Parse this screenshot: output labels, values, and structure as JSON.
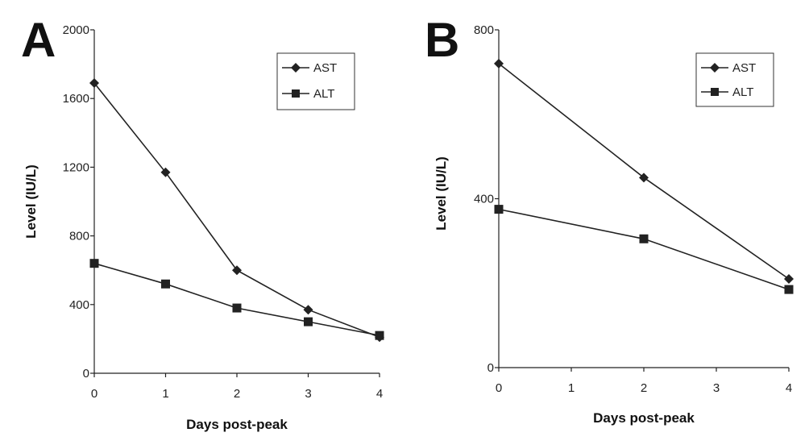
{
  "chart_data": [
    {
      "type": "line",
      "panel_label": "A",
      "xlabel": "Days post-peak",
      "ylabel": "Level (IU/L)",
      "xlim": [
        0,
        4
      ],
      "ylim": [
        0,
        2000
      ],
      "xticks": [
        0,
        1,
        2,
        3,
        4
      ],
      "yticks": [
        0,
        400,
        800,
        1200,
        1600,
        2000
      ],
      "grid": false,
      "legend_position": "top-right",
      "series": [
        {
          "name": "AST",
          "marker": "diamond",
          "x": [
            0,
            1,
            2,
            3,
            4
          ],
          "values": [
            1690,
            1170,
            600,
            370,
            210
          ]
        },
        {
          "name": "ALT",
          "marker": "square",
          "x": [
            0,
            1,
            2,
            3,
            4
          ],
          "values": [
            640,
            520,
            380,
            300,
            220
          ]
        }
      ]
    },
    {
      "type": "line",
      "panel_label": "B",
      "xlabel": "Days post-peak",
      "ylabel": "Level (IU/L)",
      "xlim": [
        0,
        4
      ],
      "ylim": [
        0,
        800
      ],
      "xticks": [
        0,
        1,
        2,
        3,
        4
      ],
      "yticks": [
        0,
        400,
        800
      ],
      "grid": false,
      "legend_position": "top-right",
      "series": [
        {
          "name": "AST",
          "marker": "diamond",
          "x": [
            0,
            2,
            4
          ],
          "values": [
            720,
            450,
            210
          ]
        },
        {
          "name": "ALT",
          "marker": "square",
          "x": [
            0,
            2,
            4
          ],
          "values": [
            375,
            305,
            185
          ]
        }
      ]
    }
  ]
}
